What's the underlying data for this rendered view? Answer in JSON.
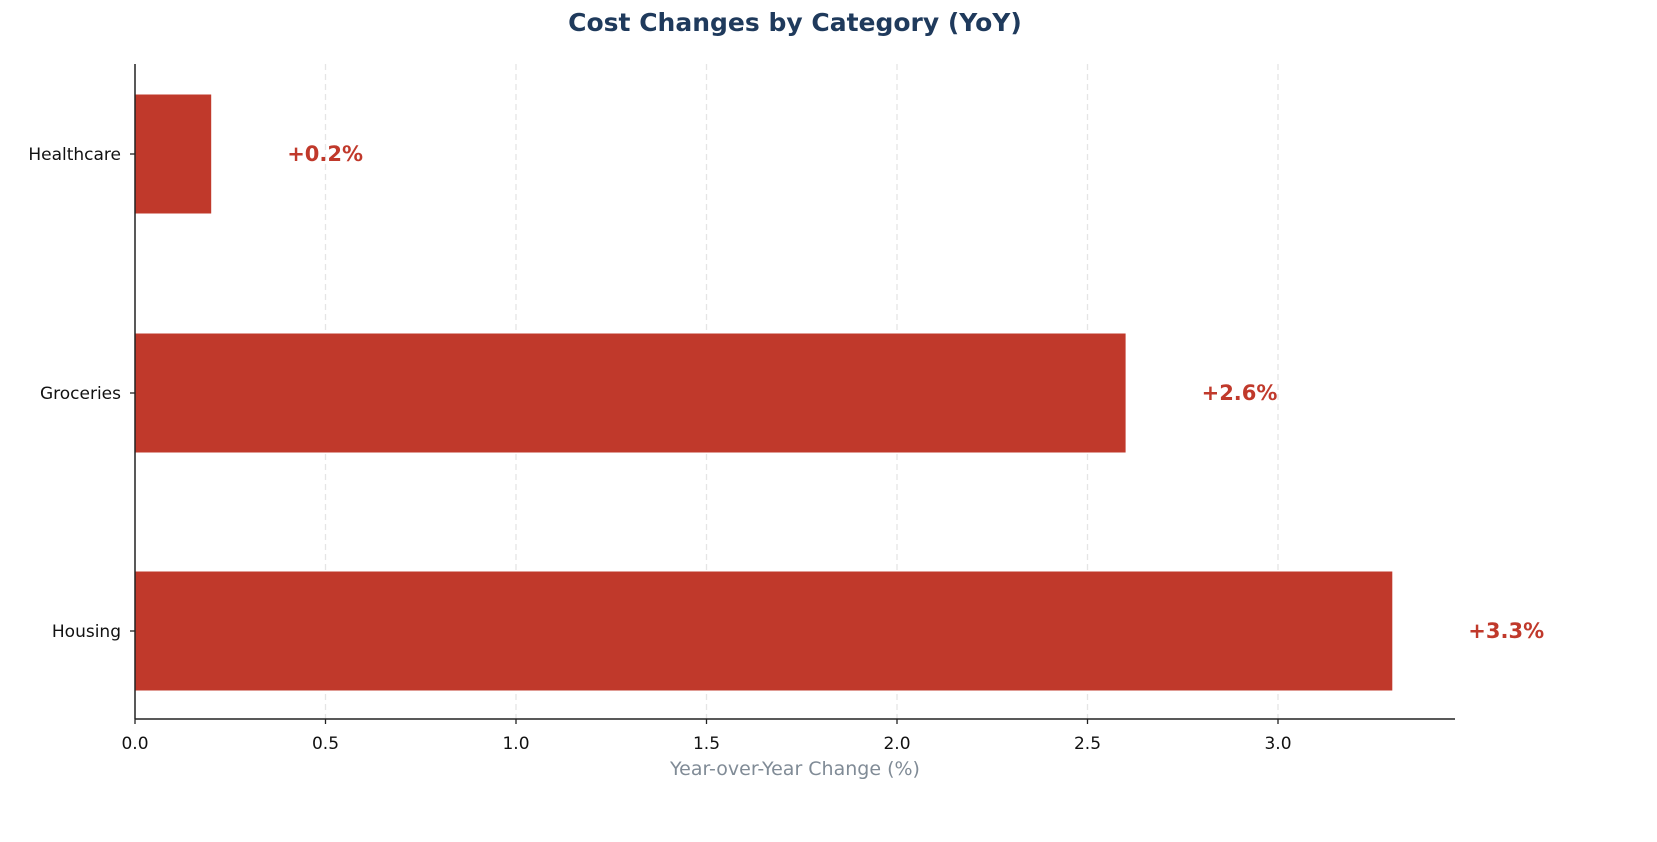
{
  "chart_data": {
    "type": "bar",
    "orientation": "horizontal",
    "title": "Cost Changes by Category (YoY)",
    "xlabel": "Year-over-Year Change (%)",
    "ylabel": "",
    "categories": [
      "Healthcare",
      "Groceries",
      "Housing"
    ],
    "values": [
      0.2,
      2.6,
      3.3
    ],
    "data_labels": [
      "+0.2%",
      "+2.6%",
      "+3.3%"
    ],
    "xlim": [
      0,
      3.465
    ],
    "xticks": [
      0.0,
      0.5,
      1.0,
      1.5,
      2.0,
      2.5,
      3.0
    ],
    "xtick_labels": [
      "0.0",
      "0.5",
      "1.0",
      "1.5",
      "2.0",
      "2.5",
      "3.0"
    ],
    "grid": {
      "x": true,
      "y": false,
      "style": "dashed"
    },
    "legend": null,
    "colors": {
      "bar": "#c0392b",
      "label": "#c0392b",
      "title": "#1f3a5c",
      "xlabel": "#808b96",
      "grid": "#e5e5e5",
      "axis": "#222222"
    }
  }
}
